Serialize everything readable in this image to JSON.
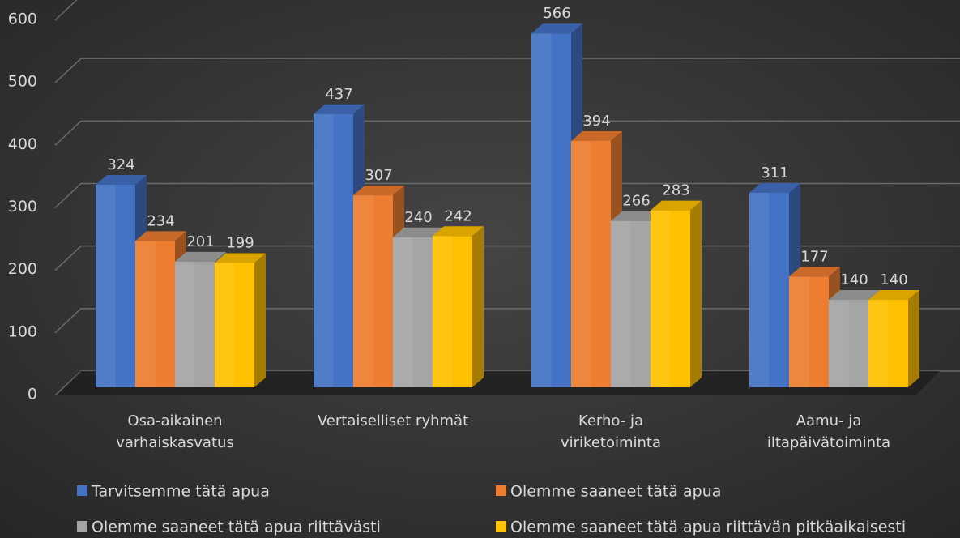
{
  "chart_data": {
    "type": "bar3d",
    "categories": [
      "Osa-aikainen varhaiskasvatus",
      "Vertaiselliset ryhmät",
      "Kerho- ja viriketoiminta",
      "Aamu- ja iltapäivätoiminta"
    ],
    "series": [
      {
        "name": "Tarvitsemme tätä apua",
        "color": "#4472c4",
        "values": [
          324,
          437,
          566,
          311
        ]
      },
      {
        "name": "Olemme saaneet tätä apua",
        "color": "#ed7d31",
        "values": [
          234,
          307,
          394,
          177
        ]
      },
      {
        "name": "Olemme saaneet tätä apua riittävästi",
        "color": "#a5a5a5",
        "values": [
          201,
          240,
          266,
          140
        ]
      },
      {
        "name": "Olemme saaneet tätä apua riittävän pitkäaikaisesti",
        "color": "#ffc000",
        "values": [
          199,
          242,
          283,
          140
        ]
      }
    ],
    "ylim": [
      0,
      600
    ],
    "yticks": [
      0,
      100,
      200,
      300,
      400,
      500,
      600
    ],
    "grid": true,
    "legend": "bottom"
  }
}
